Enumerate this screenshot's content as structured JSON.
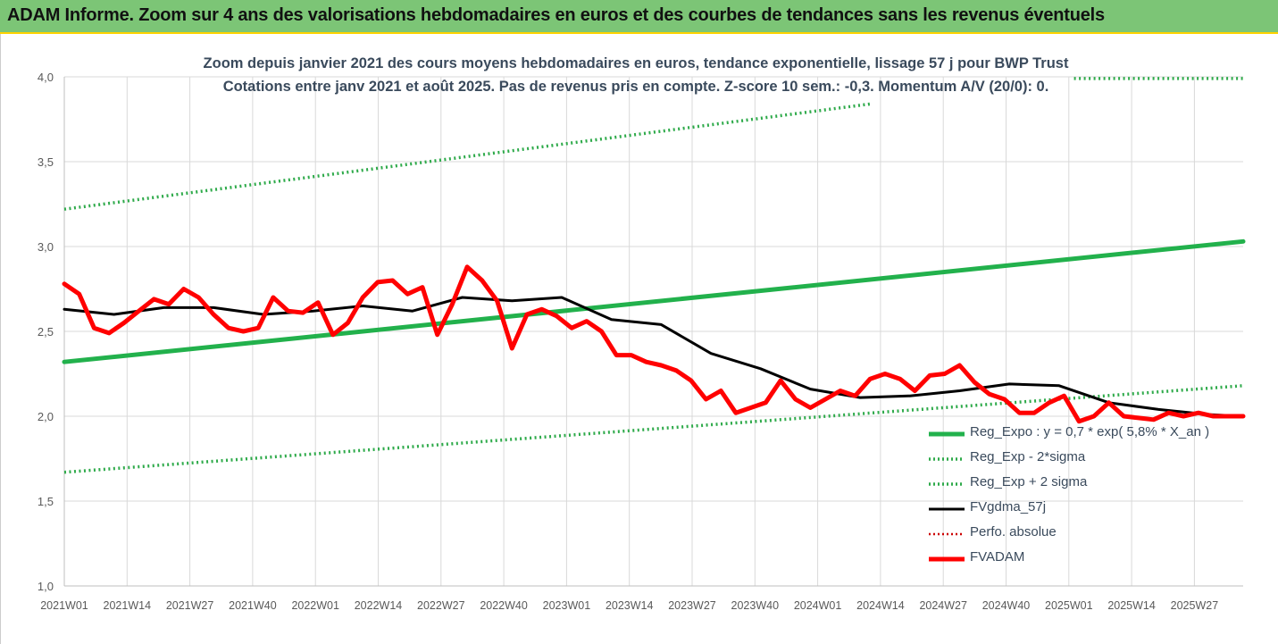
{
  "header": {
    "title": "ADAM Informe. Zoom sur 4 ans des valorisations hebdomadaires en euros et des courbes de tendances sans les revenus éventuels"
  },
  "colors": {
    "header_bg": "#7cc576",
    "header_border": "#ffd200",
    "trend_green": "#22b14c",
    "band_green": "#2eaa4a",
    "price_red": "#ff0000",
    "sma_black": "#000000",
    "grid": "#d9d9d9"
  },
  "chart_data": {
    "type": "line",
    "title": "Zoom depuis janvier 2021 des cours moyens hebdomadaires en euros, tendance exponentielle, lissage 57 j pour BWP Trust",
    "subtitle": "Cotations entre janv 2021 et août 2025. Pas de revenus pris en compte. Z-score 10 sem.: -0,3. Momentum A/V (20/0): 0.",
    "x_ticks": [
      "2021W01",
      "2021W14",
      "2021W27",
      "2021W40",
      "2022W01",
      "2022W14",
      "2022W27",
      "2022W40",
      "2023W01",
      "2023W14",
      "2023W27",
      "2023W40",
      "2024W01",
      "2024W14",
      "2024W27",
      "2024W40",
      "2025W01",
      "2025W14",
      "2025W27"
    ],
    "y_ticks": [
      "1,0",
      "1,5",
      "2,0",
      "2,5",
      "3,0",
      "3,5",
      "4,0"
    ],
    "ylim": [
      1.0,
      4.0
    ],
    "n_weeks": 238,
    "grid": true,
    "legend_position": "bottom-right",
    "series": [
      {
        "name": "Reg_Expo : y = 0,7 * exp( 5,8% *  X_an )",
        "style": "solid-thick",
        "color": "#22b14c",
        "x": [
          0,
          237
        ],
        "y": [
          2.32,
          3.03
        ]
      },
      {
        "name": "Reg_Exp - 2*sigma",
        "style": "dotted",
        "color": "#2eaa4a",
        "x": [
          0,
          237
        ],
        "y": [
          1.67,
          2.18
        ]
      },
      {
        "name": "Reg_Exp + 2 sigma",
        "style": "dotted",
        "color": "#2eaa4a",
        "x": [
          0,
          162
        ],
        "y": [
          3.22,
          3.84
        ],
        "x2": [
          203,
          237
        ],
        "y2": [
          3.99,
          3.99
        ]
      },
      {
        "name": "FVgdma_57j",
        "style": "solid",
        "color": "#000000",
        "x": [
          0,
          10,
          20,
          30,
          40,
          50,
          60,
          70,
          80,
          90,
          100,
          110,
          120,
          130,
          140,
          150,
          160,
          170,
          180,
          190,
          200,
          210,
          220,
          230,
          237
        ],
        "y": [
          2.63,
          2.6,
          2.64,
          2.64,
          2.6,
          2.62,
          2.65,
          2.62,
          2.7,
          2.68,
          2.7,
          2.57,
          2.54,
          2.37,
          2.28,
          2.16,
          2.11,
          2.12,
          2.15,
          2.19,
          2.18,
          2.08,
          2.04,
          2.01,
          2.0
        ]
      },
      {
        "name": "Perfo. absolue",
        "style": "dotted",
        "color": "#cc0000",
        "x": [],
        "y": []
      },
      {
        "name": "FVADAM",
        "style": "solid-thick",
        "color": "#ff0000",
        "x": [
          0,
          3,
          6,
          9,
          12,
          15,
          18,
          21,
          24,
          27,
          30,
          33,
          36,
          39,
          42,
          45,
          48,
          51,
          54,
          57,
          60,
          63,
          66,
          69,
          72,
          75,
          78,
          81,
          84,
          87,
          90,
          93,
          96,
          99,
          102,
          105,
          108,
          111,
          114,
          117,
          120,
          123,
          126,
          129,
          132,
          135,
          138,
          141,
          144,
          147,
          150,
          153,
          156,
          159,
          162,
          165,
          168,
          171,
          174,
          177,
          180,
          183,
          186,
          189,
          192,
          195,
          198,
          201,
          204,
          207,
          210,
          213,
          216,
          219,
          222,
          225,
          228,
          231,
          234,
          237
        ],
        "y": [
          2.78,
          2.72,
          2.52,
          2.49,
          2.55,
          2.62,
          2.69,
          2.66,
          2.75,
          2.7,
          2.6,
          2.52,
          2.5,
          2.52,
          2.7,
          2.62,
          2.61,
          2.67,
          2.48,
          2.55,
          2.7,
          2.79,
          2.8,
          2.72,
          2.76,
          2.48,
          2.66,
          2.88,
          2.8,
          2.68,
          2.4,
          2.6,
          2.63,
          2.59,
          2.52,
          2.56,
          2.5,
          2.36,
          2.36,
          2.32,
          2.3,
          2.27,
          2.21,
          2.1,
          2.15,
          2.02,
          2.05,
          2.08,
          2.21,
          2.1,
          2.05,
          2.1,
          2.15,
          2.12,
          2.22,
          2.25,
          2.22,
          2.15,
          2.24,
          2.25,
          2.3,
          2.2,
          2.13,
          2.1,
          2.02,
          2.02,
          2.08,
          2.12,
          1.97,
          2.0,
          2.08,
          2.0,
          1.99,
          1.98,
          2.02,
          2.0,
          2.02,
          2.0,
          2.0,
          2.0
        ]
      }
    ]
  }
}
